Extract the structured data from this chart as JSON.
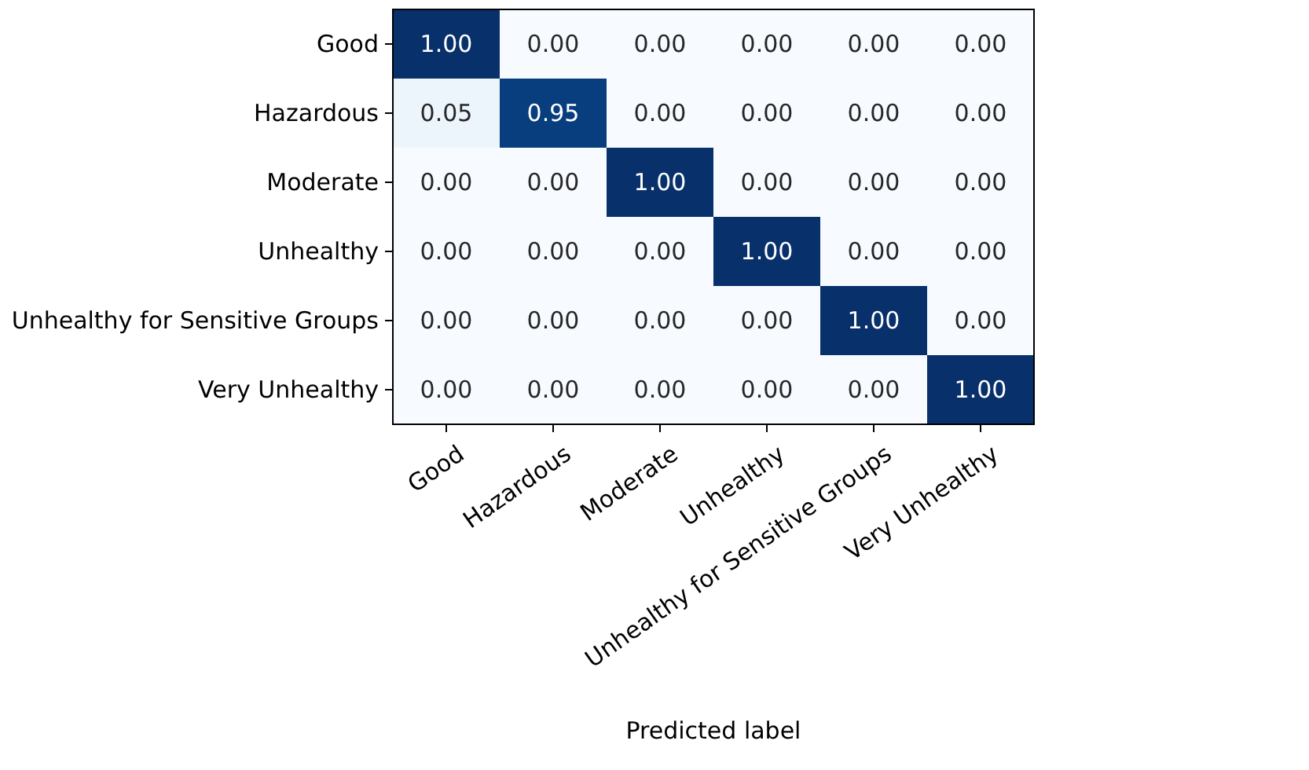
{
  "chart_data": {
    "type": "heatmap",
    "xlabel": "Predicted label",
    "categories": [
      "Good",
      "Hazardous",
      "Moderate",
      "Unhealthy",
      "Unhealthy for Sensitive Groups",
      "Very Unhealthy"
    ],
    "y_categories": [
      "Good",
      "Hazardous",
      "Moderate",
      "Unhealthy",
      "Unhealthy for Sensitive Groups",
      "Very Unhealthy"
    ],
    "cells": [
      [
        1,
        0,
        0,
        0,
        0,
        0
      ],
      [
        0.05,
        0.95,
        0,
        0,
        0,
        0
      ],
      [
        0,
        0,
        1,
        0,
        0,
        0
      ],
      [
        0,
        0,
        0,
        1,
        0,
        0
      ],
      [
        0,
        0,
        0,
        0,
        1,
        0
      ],
      [
        0,
        0,
        0,
        0,
        0,
        1
      ]
    ],
    "cell_labels": [
      [
        "1.00",
        "0.00",
        "0.00",
        "0.00",
        "0.00",
        "0.00"
      ],
      [
        "0.05",
        "0.95",
        "0.00",
        "0.00",
        "0.00",
        "0.00"
      ],
      [
        "0.00",
        "0.00",
        "1.00",
        "0.00",
        "0.00",
        "0.00"
      ],
      [
        "0.00",
        "0.00",
        "0.00",
        "1.00",
        "0.00",
        "0.00"
      ],
      [
        "0.00",
        "0.00",
        "0.00",
        "0.00",
        "1.00",
        "0.00"
      ],
      [
        "0.00",
        "0.00",
        "0.00",
        "0.00",
        "0.00",
        "1.00"
      ]
    ]
  }
}
